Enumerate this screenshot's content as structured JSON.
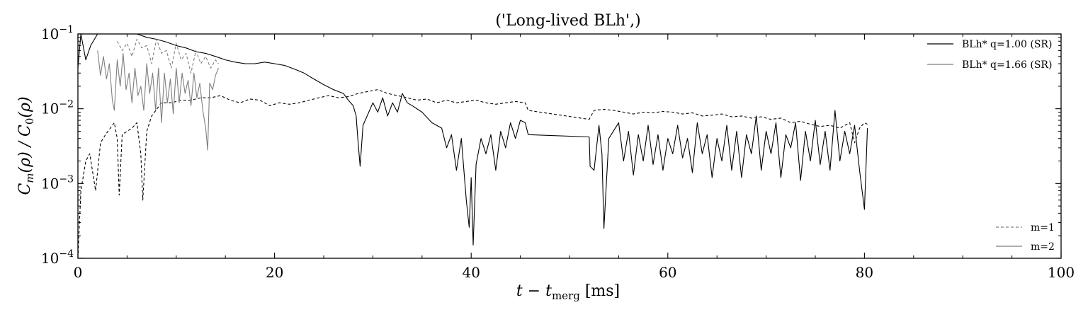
{
  "chart_data": {
    "type": "line",
    "title": "('Long-lived BLh',)",
    "xlabel": "t − t",
    "xlabel_sub": "merg",
    "xlabel_unit": " [ms]",
    "ylabel": "C",
    "ylabel_sub": "m",
    "ylabel_rest": "(ρ) / C",
    "ylabel_sub2": "0",
    "ylabel_end": "(ρ)",
    "xlim": [
      0,
      100
    ],
    "ylim": [
      0.0001,
      0.1
    ],
    "yscale": "log",
    "xticks": [
      0,
      20,
      40,
      60,
      80,
      100
    ],
    "xtick_labels": [
      "0",
      "20",
      "40",
      "60",
      "80",
      "100"
    ],
    "yticks": [
      0.0001,
      0.001,
      0.01,
      0.1
    ],
    "ytick_bases": [
      "10",
      "10",
      "10",
      "10"
    ],
    "ytick_exps": [
      "−4",
      "−3",
      "−2",
      "−1"
    ],
    "grid": false,
    "legend_models": {
      "position": "top-right",
      "entries": [
        {
          "label": "BLh* q=1.00 (SR)",
          "color": "#000000"
        },
        {
          "label": "BLh* q=1.66 (SR)",
          "color": "#7f7f7f"
        }
      ]
    },
    "legend_modes": {
      "position": "bottom-right",
      "entries": [
        {
          "label": "m=1",
          "style": "dashed"
        },
        {
          "label": "m=2",
          "style": "solid"
        }
      ]
    },
    "series": [
      {
        "model": "BLh* q=1.00 (SR)",
        "mode": "m=1",
        "color": "#000000",
        "dash": true,
        "points": [
          [
            0,
            0.0001
          ],
          [
            0.3,
            0.0008
          ],
          [
            0.8,
            0.002
          ],
          [
            1.2,
            0.0025
          ],
          [
            1.8,
            0.0008
          ],
          [
            2.3,
            0.0035
          ],
          [
            2.8,
            0.0045
          ],
          [
            3.3,
            0.0055
          ],
          [
            3.7,
            0.0065
          ],
          [
            4.0,
            0.004
          ],
          [
            4.2,
            0.0007
          ],
          [
            4.5,
            0.0045
          ],
          [
            5.0,
            0.005
          ],
          [
            5.5,
            0.0055
          ],
          [
            6.0,
            0.0065
          ],
          [
            6.4,
            0.0025
          ],
          [
            6.6,
            0.0006
          ],
          [
            7.0,
            0.005
          ],
          [
            7.5,
            0.008
          ],
          [
            8.5,
            0.012
          ],
          [
            9.5,
            0.012
          ],
          [
            10.5,
            0.013
          ],
          [
            11.5,
            0.013
          ],
          [
            12.5,
            0.014
          ],
          [
            13.5,
            0.014
          ],
          [
            14.5,
            0.015
          ],
          [
            15.5,
            0.013
          ],
          [
            16.5,
            0.012
          ],
          [
            17.5,
            0.0135
          ],
          [
            18.5,
            0.013
          ],
          [
            19.5,
            0.011
          ],
          [
            20.5,
            0.012
          ],
          [
            21.5,
            0.0115
          ],
          [
            22.5,
            0.012
          ],
          [
            23.5,
            0.013
          ],
          [
            24.5,
            0.014
          ],
          [
            25.5,
            0.015
          ],
          [
            26.5,
            0.014
          ],
          [
            27.5,
            0.0145
          ],
          [
            28.5,
            0.016
          ],
          [
            29.5,
            0.017
          ],
          [
            30.5,
            0.018
          ],
          [
            31.5,
            0.016
          ],
          [
            32.5,
            0.015
          ],
          [
            33.5,
            0.014
          ],
          [
            34.5,
            0.013
          ],
          [
            35.5,
            0.0135
          ],
          [
            36.5,
            0.012
          ],
          [
            37.5,
            0.013
          ],
          [
            38.5,
            0.012
          ],
          [
            39.5,
            0.0125
          ],
          [
            40.5,
            0.013
          ],
          [
            41.5,
            0.012
          ],
          [
            42.5,
            0.0115
          ],
          [
            43.5,
            0.012
          ],
          [
            44.5,
            0.0125
          ],
          [
            45.5,
            0.012
          ],
          [
            45.8,
            0.0095
          ],
          [
            52.0,
            0.0072
          ],
          [
            52.5,
            0.0095
          ],
          [
            53.5,
            0.0098
          ],
          [
            54.5,
            0.0095
          ],
          [
            55.5,
            0.009
          ],
          [
            56.5,
            0.0085
          ],
          [
            57.5,
            0.009
          ],
          [
            58.5,
            0.0088
          ],
          [
            59.5,
            0.0092
          ],
          [
            60.5,
            0.009
          ],
          [
            61.5,
            0.0085
          ],
          [
            62.5,
            0.0088
          ],
          [
            63.5,
            0.008
          ],
          [
            64.5,
            0.0082
          ],
          [
            65.5,
            0.0085
          ],
          [
            66.5,
            0.0078
          ],
          [
            67.5,
            0.008
          ],
          [
            68.5,
            0.0075
          ],
          [
            69.5,
            0.0078
          ],
          [
            70.5,
            0.0072
          ],
          [
            71.5,
            0.0075
          ],
          [
            72.5,
            0.0065
          ],
          [
            73.5,
            0.0068
          ],
          [
            74.5,
            0.0062
          ],
          [
            75.5,
            0.0058
          ],
          [
            76.5,
            0.006
          ],
          [
            77.5,
            0.0055
          ],
          [
            78.5,
            0.0065
          ],
          [
            79.0,
            0.0035
          ],
          [
            79.5,
            0.0055
          ],
          [
            80.0,
            0.0065
          ],
          [
            80.3,
            0.0062
          ]
        ]
      },
      {
        "model": "BLh* q=1.00 (SR)",
        "mode": "m=2",
        "color": "#000000",
        "dash": false,
        "points": [
          [
            0,
            0.035
          ],
          [
            0.3,
            0.1
          ],
          [
            0.8,
            0.045
          ],
          [
            1.3,
            0.07
          ],
          [
            2,
            0.1
          ],
          [
            3,
            0.1
          ],
          [
            4,
            0.1
          ],
          [
            5,
            0.1
          ],
          [
            6,
            0.1
          ],
          [
            7,
            0.09
          ],
          [
            8,
            0.085
          ],
          [
            9,
            0.078
          ],
          [
            10,
            0.07
          ],
          [
            11,
            0.065
          ],
          [
            12,
            0.058
          ],
          [
            13,
            0.055
          ],
          [
            14,
            0.05
          ],
          [
            15,
            0.045
          ],
          [
            16,
            0.042
          ],
          [
            17,
            0.04
          ],
          [
            18,
            0.04
          ],
          [
            19,
            0.042
          ],
          [
            20,
            0.04
          ],
          [
            21,
            0.038
          ],
          [
            22,
            0.034
          ],
          [
            23,
            0.03
          ],
          [
            24,
            0.025
          ],
          [
            25,
            0.021
          ],
          [
            26,
            0.018
          ],
          [
            27,
            0.016
          ],
          [
            27.5,
            0.013
          ],
          [
            28.0,
            0.011
          ],
          [
            28.3,
            0.008
          ],
          [
            28.5,
            0.0035
          ],
          [
            28.7,
            0.0017
          ],
          [
            29.0,
            0.006
          ],
          [
            29.5,
            0.0085
          ],
          [
            30,
            0.012
          ],
          [
            30.5,
            0.009
          ],
          [
            31,
            0.014
          ],
          [
            31.5,
            0.008
          ],
          [
            32,
            0.012
          ],
          [
            32.5,
            0.009
          ],
          [
            33,
            0.016
          ],
          [
            33.5,
            0.012
          ],
          [
            34,
            0.011
          ],
          [
            35,
            0.009
          ],
          [
            36,
            0.0065
          ],
          [
            37,
            0.0055
          ],
          [
            37.5,
            0.003
          ],
          [
            38,
            0.0045
          ],
          [
            38.5,
            0.0015
          ],
          [
            39,
            0.004
          ],
          [
            39.5,
            0.0006
          ],
          [
            39.8,
            0.00026
          ],
          [
            40.0,
            0.0012
          ],
          [
            40.2,
            0.00015
          ],
          [
            40.5,
            0.0018
          ],
          [
            41,
            0.004
          ],
          [
            41.5,
            0.0025
          ],
          [
            42,
            0.0045
          ],
          [
            42.5,
            0.0015
          ],
          [
            43,
            0.005
          ],
          [
            43.5,
            0.003
          ],
          [
            44,
            0.0065
          ],
          [
            44.5,
            0.004
          ],
          [
            45,
            0.007
          ],
          [
            45.5,
            0.0065
          ],
          [
            45.8,
            0.0045
          ],
          [
            52.0,
            0.0042
          ],
          [
            52.1,
            0.0017
          ],
          [
            52.5,
            0.0015
          ],
          [
            53,
            0.006
          ],
          [
            53.3,
            0.0025
          ],
          [
            53.5,
            0.00025
          ],
          [
            54,
            0.004
          ],
          [
            55,
            0.0065
          ],
          [
            55.5,
            0.002
          ],
          [
            56,
            0.005
          ],
          [
            56.5,
            0.0013
          ],
          [
            57,
            0.0045
          ],
          [
            57.5,
            0.002
          ],
          [
            58,
            0.006
          ],
          [
            58.5,
            0.0018
          ],
          [
            59,
            0.0045
          ],
          [
            59.5,
            0.0015
          ],
          [
            60,
            0.004
          ],
          [
            60.5,
            0.0025
          ],
          [
            61,
            0.006
          ],
          [
            61.5,
            0.0022
          ],
          [
            62,
            0.004
          ],
          [
            62.5,
            0.0014
          ],
          [
            63,
            0.0065
          ],
          [
            63.5,
            0.0025
          ],
          [
            64,
            0.0045
          ],
          [
            64.5,
            0.0012
          ],
          [
            65,
            0.004
          ],
          [
            65.5,
            0.002
          ],
          [
            66,
            0.006
          ],
          [
            66.5,
            0.0015
          ],
          [
            67,
            0.005
          ],
          [
            67.5,
            0.0012
          ],
          [
            68,
            0.0045
          ],
          [
            68.5,
            0.0025
          ],
          [
            69,
            0.008
          ],
          [
            69.5,
            0.0015
          ],
          [
            70,
            0.005
          ],
          [
            70.5,
            0.0025
          ],
          [
            71,
            0.0065
          ],
          [
            71.5,
            0.0012
          ],
          [
            72,
            0.0045
          ],
          [
            72.5,
            0.003
          ],
          [
            73,
            0.0065
          ],
          [
            73.5,
            0.0011
          ],
          [
            74,
            0.005
          ],
          [
            74.5,
            0.002
          ],
          [
            75,
            0.007
          ],
          [
            75.5,
            0.0018
          ],
          [
            76,
            0.005
          ],
          [
            76.5,
            0.0015
          ],
          [
            77,
            0.0095
          ],
          [
            77.5,
            0.002
          ],
          [
            78,
            0.005
          ],
          [
            78.5,
            0.0025
          ],
          [
            79,
            0.006
          ],
          [
            79.5,
            0.0015
          ],
          [
            80,
            0.00045
          ],
          [
            80.3,
            0.0055
          ]
        ]
      },
      {
        "model": "BLh* q=1.66 (SR)",
        "mode": "m=1",
        "color": "#7f7f7f",
        "dash": true,
        "points": [
          [
            4.0,
            0.08
          ],
          [
            4.5,
            0.06
          ],
          [
            5,
            0.075
          ],
          [
            5.5,
            0.05
          ],
          [
            6,
            0.085
          ],
          [
            6.5,
            0.065
          ],
          [
            7,
            0.07
          ],
          [
            7.5,
            0.04
          ],
          [
            8,
            0.085
          ],
          [
            8.5,
            0.055
          ],
          [
            9,
            0.06
          ],
          [
            9.5,
            0.035
          ],
          [
            10,
            0.075
          ],
          [
            10.5,
            0.045
          ],
          [
            11,
            0.055
          ],
          [
            11.5,
            0.03
          ],
          [
            12,
            0.06
          ],
          [
            12.5,
            0.04
          ],
          [
            13,
            0.05
          ],
          [
            13.5,
            0.035
          ],
          [
            14,
            0.045
          ],
          [
            14.3,
            0.04
          ]
        ]
      },
      {
        "model": "BLh* q=1.66 (SR)",
        "mode": "m=2",
        "color": "#7f7f7f",
        "dash": false,
        "points": [
          [
            2.0,
            0.06
          ],
          [
            2.3,
            0.028
          ],
          [
            2.6,
            0.05
          ],
          [
            2.9,
            0.025
          ],
          [
            3.2,
            0.04
          ],
          [
            3.5,
            0.013
          ],
          [
            3.7,
            0.0095
          ],
          [
            4.0,
            0.045
          ],
          [
            4.3,
            0.02
          ],
          [
            4.6,
            0.055
          ],
          [
            4.9,
            0.018
          ],
          [
            5.2,
            0.03
          ],
          [
            5.5,
            0.012
          ],
          [
            5.8,
            0.035
          ],
          [
            6.1,
            0.015
          ],
          [
            6.4,
            0.02
          ],
          [
            6.7,
            0.0095
          ],
          [
            7.0,
            0.04
          ],
          [
            7.3,
            0.016
          ],
          [
            7.6,
            0.03
          ],
          [
            7.9,
            0.0095
          ],
          [
            8.2,
            0.035
          ],
          [
            8.5,
            0.0065
          ],
          [
            8.8,
            0.03
          ],
          [
            9.1,
            0.012
          ],
          [
            9.4,
            0.025
          ],
          [
            9.7,
            0.0085
          ],
          [
            10.0,
            0.035
          ],
          [
            10.3,
            0.012
          ],
          [
            10.6,
            0.03
          ],
          [
            10.9,
            0.016
          ],
          [
            11.2,
            0.024
          ],
          [
            11.5,
            0.011
          ],
          [
            11.8,
            0.03
          ],
          [
            12.1,
            0.014
          ],
          [
            12.4,
            0.022
          ],
          [
            12.7,
            0.0095
          ],
          [
            13.0,
            0.0055
          ],
          [
            13.2,
            0.0028
          ],
          [
            13.4,
            0.022
          ],
          [
            13.7,
            0.018
          ],
          [
            14.0,
            0.028
          ],
          [
            14.3,
            0.035
          ]
        ]
      }
    ]
  }
}
